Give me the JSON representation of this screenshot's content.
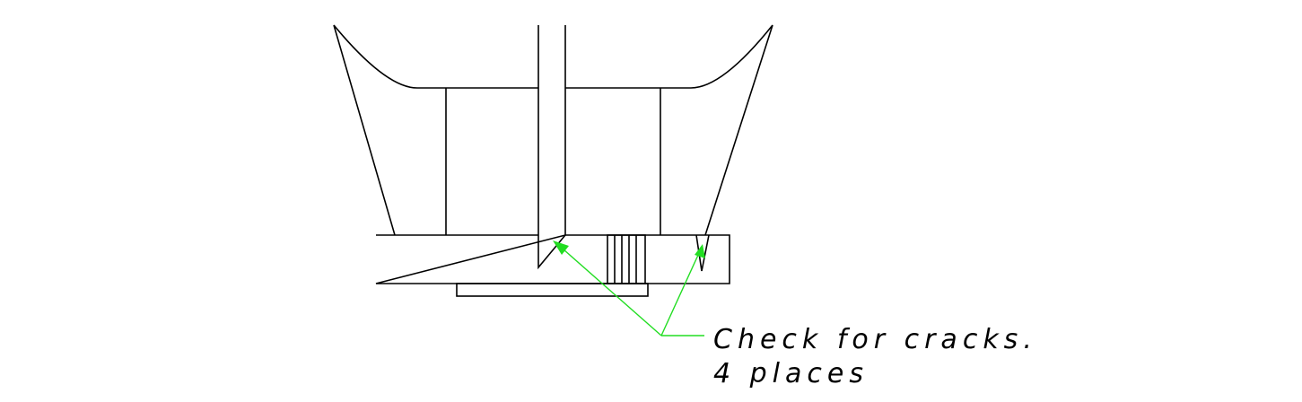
{
  "callout": {
    "line1": "Check for cracks.",
    "line2": "4 places"
  },
  "colors": {
    "outline": "#000000",
    "leader": "#22dd22",
    "background": "#ffffff"
  }
}
